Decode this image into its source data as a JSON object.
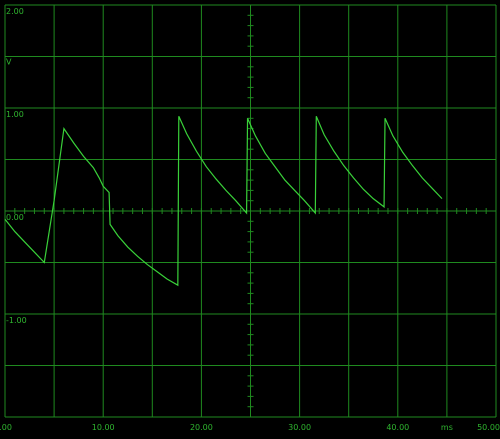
{
  "colors": {
    "background": "#000000",
    "grid": "#1f8a1f",
    "trace": "#39d139",
    "text": "#2fb52f"
  },
  "chart_data": {
    "type": "line",
    "title": "",
    "xlabel": "",
    "ylabel": "",
    "x_unit": "ms",
    "y_unit": "V",
    "xlim": [
      0,
      50
    ],
    "ylim": [
      -2,
      2
    ],
    "grid": true,
    "x_tick_labels": [
      "0.00",
      "10.00",
      "20.00",
      "30.00",
      "40.00",
      "50.00"
    ],
    "y_tick_labels": [
      "2.00",
      "1.00",
      "0.00",
      "-1.00"
    ],
    "series": [
      {
        "x": [
          0,
          1,
          2,
          2.5,
          3,
          4,
          5,
          6,
          7,
          8,
          9,
          9.6,
          10,
          10.6,
          10.7,
          11.5,
          12.5,
          13.5,
          14.5,
          15.5,
          16.5,
          17.6,
          17.7,
          18.5,
          19.5,
          20.5,
          21.5,
          22.5,
          23.5,
          24.6,
          24.7,
          25.5,
          26.5,
          27.5,
          28.5,
          29.5,
          30.5,
          31.6,
          31.7,
          32.5,
          33.5,
          34.5,
          35.5,
          36.5,
          37.5,
          38.6,
          38.7,
          39.5,
          40.5,
          41.5,
          42.5,
          43.5,
          44.5
        ],
        "y": [
          -0.08,
          -0.2,
          -0.3,
          -0.35,
          -0.4,
          -0.5,
          0.1,
          0.8,
          0.66,
          0.53,
          0.42,
          0.32,
          0.24,
          0.18,
          -0.13,
          -0.24,
          -0.35,
          -0.44,
          -0.52,
          -0.59,
          -0.66,
          -0.72,
          0.92,
          0.75,
          0.58,
          0.43,
          0.31,
          0.2,
          0.1,
          -0.02,
          0.9,
          0.73,
          0.56,
          0.43,
          0.3,
          0.2,
          0.1,
          -0.02,
          0.92,
          0.74,
          0.58,
          0.44,
          0.32,
          0.21,
          0.12,
          0.04,
          0.9,
          0.73,
          0.57,
          0.44,
          0.32,
          0.22,
          0.12
        ],
        "note": ""
      }
    ]
  }
}
